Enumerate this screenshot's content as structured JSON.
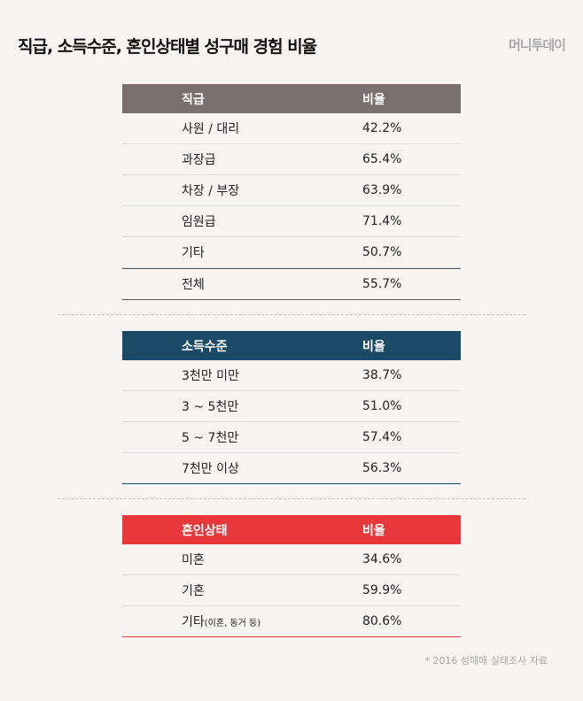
{
  "title": "직급, 소득수준, 혼인상태별 성구매 경험 비율",
  "logo": "머니투데이",
  "tables": [
    {
      "color": "#7a6f6f",
      "header": [
        "직급",
        "비율"
      ],
      "rows": [
        [
          "사원 / 대리",
          "42.2%"
        ],
        [
          "과장급",
          "65.4%"
        ],
        [
          "차장 / 부장",
          "63.9%"
        ],
        [
          "임원급",
          "71.4%"
        ],
        [
          "기타",
          "50.7%"
        ]
      ],
      "total": [
        "전체",
        "55.7%"
      ]
    },
    {
      "color": "#1b4a66",
      "header": [
        "소득수준",
        "비율"
      ],
      "rows": [
        [
          "3천만 미만",
          "38.7%"
        ],
        [
          "3 ~ 5천만",
          "51.0%"
        ],
        [
          "5 ~ 7천만",
          "57.4%"
        ],
        [
          "7천만 이상",
          "56.3%"
        ]
      ]
    },
    {
      "color": "#e8373a",
      "header": [
        "혼인상태",
        "비율"
      ],
      "rows": [
        [
          "미혼",
          "34.6%"
        ],
        [
          "기혼",
          "59.9%"
        ],
        [
          "기타",
          "80.6%"
        ]
      ],
      "last_note": "(이혼, 동거 등)"
    }
  ],
  "footnote": "* 2016 성매매 실태조사 자료"
}
